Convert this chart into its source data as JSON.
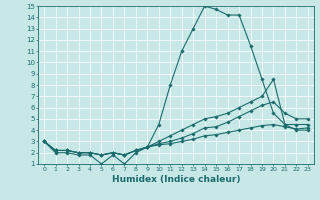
{
  "xlabel": "Humidex (Indice chaleur)",
  "xlim": [
    -0.5,
    23.5
  ],
  "ylim": [
    1,
    15
  ],
  "xticks": [
    0,
    1,
    2,
    3,
    4,
    5,
    6,
    7,
    8,
    9,
    10,
    11,
    12,
    13,
    14,
    15,
    16,
    17,
    18,
    19,
    20,
    21,
    22,
    23
  ],
  "yticks": [
    1,
    2,
    3,
    4,
    5,
    6,
    7,
    8,
    9,
    10,
    11,
    12,
    13,
    14,
    15
  ],
  "bg_color": "#c8e8e8",
  "line_color": "#1a6b6b",
  "series": [
    {
      "x": [
        0,
        1,
        2,
        3,
        4,
        5,
        6,
        7,
        8,
        9,
        10,
        11,
        12,
        13,
        14,
        15,
        16,
        17,
        18,
        19,
        20,
        21,
        22,
        23
      ],
      "y": [
        3,
        2,
        2,
        1.8,
        1.8,
        1,
        1.8,
        1,
        2,
        2.5,
        4.5,
        8,
        11,
        13,
        15,
        14.7,
        14.2,
        14.2,
        11.5,
        8.5,
        5.5,
        4.5,
        4,
        4
      ]
    },
    {
      "x": [
        0,
        1,
        2,
        3,
        4,
        5,
        6,
        7,
        8,
        9,
        10,
        11,
        12,
        13,
        14,
        15,
        16,
        17,
        18,
        19,
        20,
        21,
        22,
        23
      ],
      "y": [
        3,
        2.2,
        2.2,
        2,
        2,
        1.8,
        2,
        1.8,
        2.2,
        2.5,
        3,
        3.5,
        4,
        4.5,
        5,
        5.2,
        5.5,
        6,
        6.5,
        7,
        8.5,
        4.5,
        4.5,
        4.5
      ]
    },
    {
      "x": [
        0,
        1,
        2,
        3,
        4,
        5,
        6,
        7,
        8,
        9,
        10,
        11,
        12,
        13,
        14,
        15,
        16,
        17,
        18,
        19,
        20,
        21,
        22,
        23
      ],
      "y": [
        3,
        2.2,
        2.2,
        2,
        2,
        1.8,
        2,
        1.8,
        2.2,
        2.5,
        2.8,
        3,
        3.3,
        3.7,
        4.2,
        4.3,
        4.7,
        5.2,
        5.7,
        6.2,
        6.5,
        5.5,
        5,
        5
      ]
    },
    {
      "x": [
        0,
        1,
        2,
        3,
        4,
        5,
        6,
        7,
        8,
        9,
        10,
        11,
        12,
        13,
        14,
        15,
        16,
        17,
        18,
        19,
        20,
        21,
        22,
        23
      ],
      "y": [
        3,
        2.2,
        2.2,
        2,
        2,
        1.8,
        2,
        1.8,
        2.2,
        2.5,
        2.7,
        2.8,
        3,
        3.2,
        3.5,
        3.6,
        3.8,
        4,
        4.2,
        4.4,
        4.5,
        4.3,
        4.1,
        4.2
      ]
    }
  ]
}
